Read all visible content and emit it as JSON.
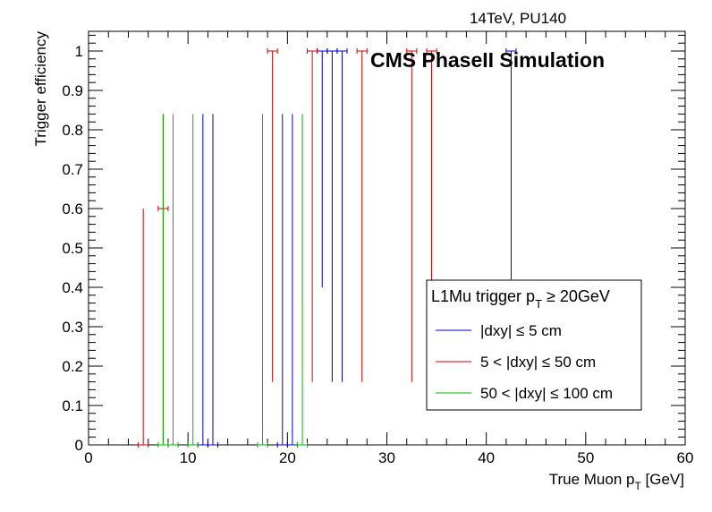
{
  "chart_data": {
    "type": "scatter",
    "top_label": "14TeV, PU140",
    "watermark": "CMS PhaseII Simulation",
    "xlabel_main": "True Muon p",
    "xlabel_sub": "T",
    "xlabel_unit": " [GeV]",
    "ylabel": "Trigger efficiency",
    "xlim": [
      0,
      60
    ],
    "ylim": [
      0,
      1.05
    ],
    "x_ticks": [
      "0",
      "10",
      "20",
      "30",
      "40",
      "50",
      "60"
    ],
    "y_ticks": [
      "0",
      "0.1",
      "0.2",
      "0.3",
      "0.4",
      "0.5",
      "0.6",
      "0.7",
      "0.8",
      "0.9",
      "1"
    ],
    "legend": {
      "placement": "bottom-right",
      "title_main": "L1Mu trigger p",
      "title_sub": "T",
      "title_tail": " ≥ 20GeV",
      "entries": [
        {
          "label": "|dxy| ≤ 5 cm",
          "color": "#0000cc"
        },
        {
          "label": "5 < |dxy| ≤ 50 cm",
          "color": "#cc0000"
        },
        {
          "label": "50 < |dxy| ≤ 100 cm",
          "color": "#00b400"
        }
      ]
    },
    "series": [
      {
        "color": "#0000cc",
        "points": [
          {
            "x": 11.5,
            "y": 0,
            "ylo": 0,
            "yhi": 0.84
          },
          {
            "x": 12.5,
            "y": 0,
            "ylo": 0,
            "yhi": 0.84
          },
          {
            "x": 19.5,
            "y": 0,
            "ylo": 0,
            "yhi": 0.84
          },
          {
            "x": 20.5,
            "y": 0,
            "ylo": 0,
            "yhi": 0.84
          },
          {
            "x": 23.5,
            "y": 1,
            "ylo": 0.4,
            "yhi": 1
          },
          {
            "x": 24.5,
            "y": 1,
            "ylo": 0.16,
            "yhi": 1
          },
          {
            "x": 25.5,
            "y": 1,
            "ylo": 0.16,
            "yhi": 1
          },
          {
            "x": 42.5,
            "y": 1,
            "ylo": 0.42,
            "yhi": 1
          }
        ]
      },
      {
        "color": "#cc0000",
        "points": [
          {
            "x": 5.5,
            "y": 0,
            "ylo": 0,
            "yhi": 0.6
          },
          {
            "x": 7.5,
            "y": 0.6,
            "ylo": 0,
            "yhi": 0.84
          },
          {
            "x": 18.5,
            "y": 1,
            "ylo": 0.16,
            "yhi": 1
          },
          {
            "x": 22.5,
            "y": 1,
            "ylo": 0.16,
            "yhi": 1
          },
          {
            "x": 27.5,
            "y": 1,
            "ylo": 0.16,
            "yhi": 1
          },
          {
            "x": 32.5,
            "y": 1,
            "ylo": 0.16,
            "yhi": 1
          },
          {
            "x": 34.5,
            "y": 1,
            "ylo": 0.38,
            "yhi": 1
          }
        ]
      },
      {
        "color": "#00b400",
        "points": [
          {
            "x": 7.5,
            "y": 0,
            "ylo": 0,
            "yhi": 0.84
          },
          {
            "x": 8.5,
            "y": 0,
            "ylo": 0,
            "yhi": 0.84
          },
          {
            "x": 10.5,
            "y": 0,
            "ylo": 0,
            "yhi": 0.84
          },
          {
            "x": 17.5,
            "y": 0,
            "ylo": 0,
            "yhi": 0.84
          },
          {
            "x": 21.5,
            "y": 0,
            "ylo": 0,
            "yhi": 0.84
          }
        ]
      }
    ]
  }
}
